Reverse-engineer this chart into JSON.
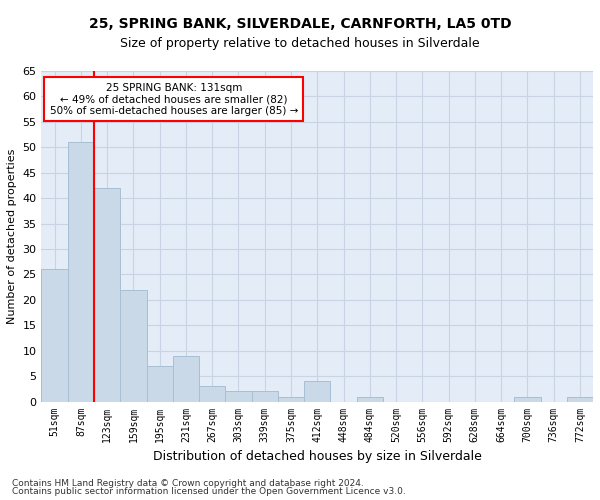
{
  "title1": "25, SPRING BANK, SILVERDALE, CARNFORTH, LA5 0TD",
  "title2": "Size of property relative to detached houses in Silverdale",
  "xlabel": "Distribution of detached houses by size in Silverdale",
  "ylabel": "Number of detached properties",
  "categories": [
    "51sqm",
    "87sqm",
    "123sqm",
    "159sqm",
    "195sqm",
    "231sqm",
    "267sqm",
    "303sqm",
    "339sqm",
    "375sqm",
    "412sqm",
    "448sqm",
    "484sqm",
    "520sqm",
    "556sqm",
    "592sqm",
    "628sqm",
    "664sqm",
    "700sqm",
    "736sqm",
    "772sqm"
  ],
  "values": [
    26,
    51,
    42,
    22,
    7,
    9,
    3,
    2,
    2,
    1,
    4,
    0,
    1,
    0,
    0,
    0,
    0,
    0,
    1,
    0,
    1
  ],
  "bar_color": "#c9d9e8",
  "bar_edgecolor": "#a8bfd4",
  "grid_color": "#c8d4e4",
  "bg_color": "#e4ecf7",
  "annotation_text": "25 SPRING BANK: 131sqm\n← 49% of detached houses are smaller (82)\n50% of semi-detached houses are larger (85) →",
  "annotation_box_color": "white",
  "annotation_box_edgecolor": "red",
  "footer1": "Contains HM Land Registry data © Crown copyright and database right 2024.",
  "footer2": "Contains public sector information licensed under the Open Government Licence v3.0.",
  "ylim": [
    0,
    65
  ],
  "yticks": [
    0,
    5,
    10,
    15,
    20,
    25,
    30,
    35,
    40,
    45,
    50,
    55,
    60,
    65
  ],
  "title1_fontsize": 10,
  "title2_fontsize": 9,
  "ylabel_fontsize": 8,
  "xlabel_fontsize": 9,
  "tick_fontsize": 7,
  "ytick_fontsize": 8,
  "footer_fontsize": 6.5
}
